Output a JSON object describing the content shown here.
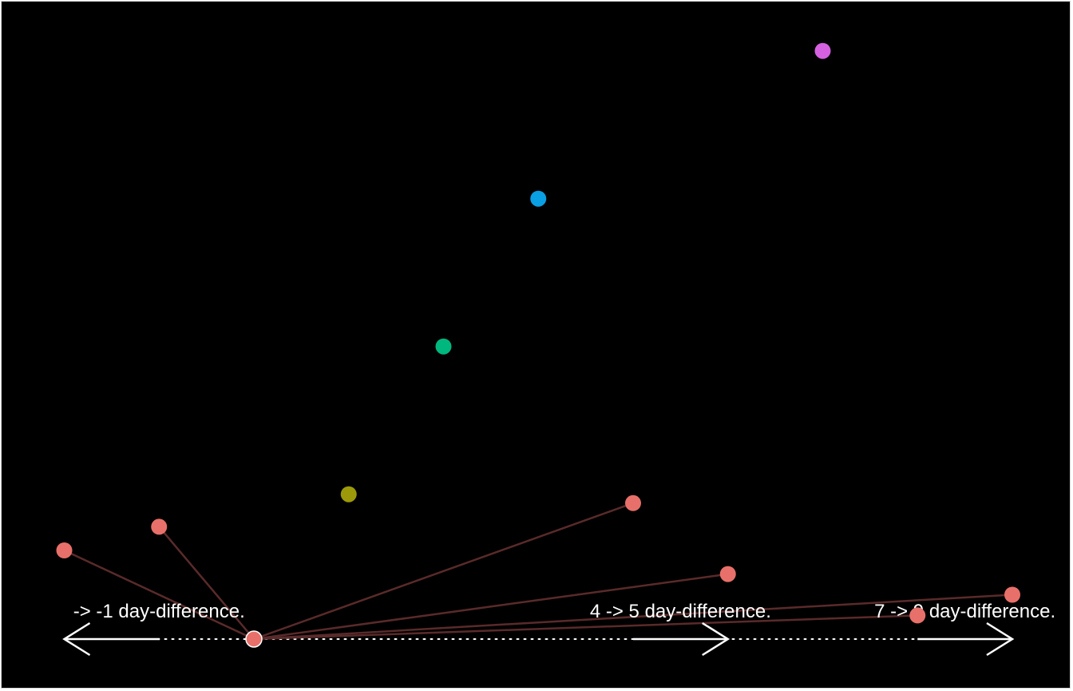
{
  "chart_data": {
    "type": "scatter",
    "title": "",
    "xlabel": "",
    "ylabel": "",
    "grid": false,
    "background": "#000000",
    "x_range": [
      -3.0,
      9.0
    ],
    "y_range": [
      0,
      11.5
    ],
    "hub": {
      "x": 0,
      "y": 0,
      "color": "#E8706A"
    },
    "connected_points": [
      {
        "x": -2.0,
        "y": 1.5
      },
      {
        "x": -1.0,
        "y": 1.9
      },
      {
        "x": 4.0,
        "y": 2.3
      },
      {
        "x": 5.0,
        "y": 1.1
      },
      {
        "x": 7.0,
        "y": 0.4
      },
      {
        "x": 8.0,
        "y": 0.75
      }
    ],
    "connector_color": "#5A2A2A",
    "points_color": "#E8706A",
    "other_points": [
      {
        "x": 1.0,
        "y": 2.45,
        "color": "#9C9A0A"
      },
      {
        "x": 2.0,
        "y": 4.95,
        "color": "#00B77E"
      },
      {
        "x": 3.0,
        "y": 7.45,
        "color": "#0A9EE2"
      },
      {
        "x": 6.0,
        "y": 9.95,
        "color": "#D561E0"
      }
    ],
    "ranges": [
      {
        "label": "-> -1 day-difference.",
        "x_from": -2.0,
        "x_to": 0.0,
        "dir": "left"
      },
      {
        "label": "4 -> 5 day-difference.",
        "x_from": 4.0,
        "x_to": 5.0,
        "dir": "right"
      },
      {
        "label": "7 -> 9 day-difference.",
        "x_from": 7.0,
        "x_to": 8.0,
        "dir": "right"
      }
    ],
    "range_color": "#ffffff"
  }
}
